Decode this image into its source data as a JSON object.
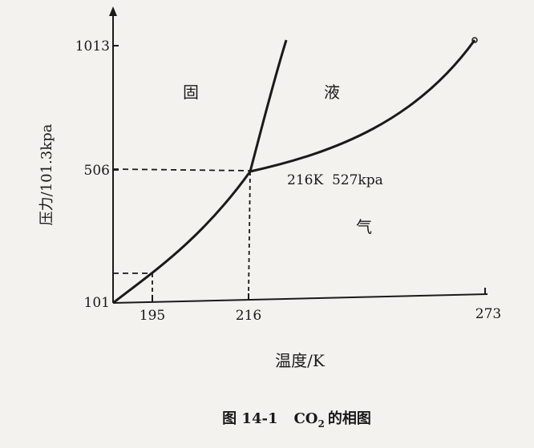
{
  "figure": {
    "caption_prefix": "图 14-1",
    "caption_formula_main": "CO",
    "caption_formula_sub": "2",
    "caption_suffix": "的相图"
  },
  "axes": {
    "ylabel": "压力/101.3kpa",
    "xlabel": "温度/K",
    "y_ticks": [
      "1013",
      "506",
      "101"
    ],
    "x_ticks": [
      "195",
      "216",
      "273"
    ]
  },
  "regions": {
    "solid": "固",
    "liquid": "液",
    "gas": "气"
  },
  "triple_point": {
    "label": "216K  527kpa",
    "temperature_K": 216,
    "pressure_kpa": 527
  },
  "colors": {
    "ink": "#1a1a1a",
    "paper": "#f4f2ee"
  }
}
